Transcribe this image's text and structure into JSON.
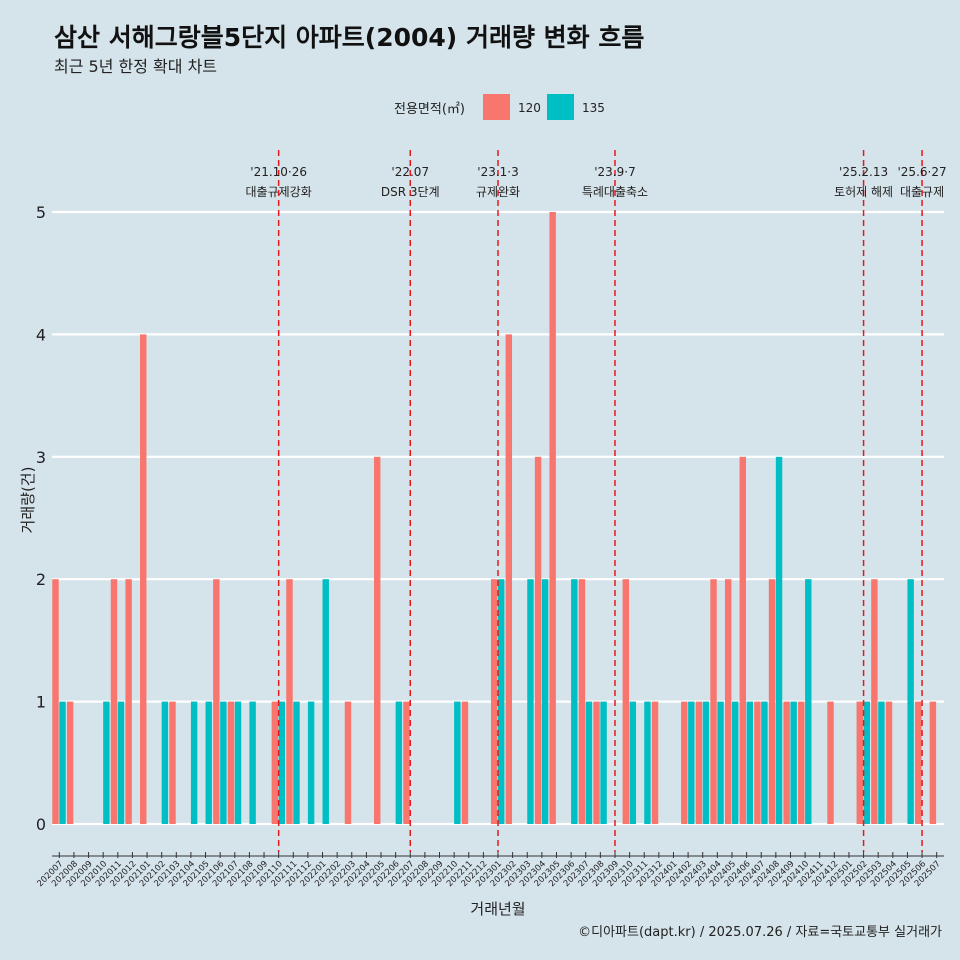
{
  "title": "삼산 서해그랑블5단지 아파트(2004) 거래량 변화 흐름",
  "subtitle": "최근 5년 한정 확대 차트",
  "caption": "©디아파트(dapt.kr) / 2025.07.26 / 자료=국토교통부 실거래가",
  "chart_data": {
    "type": "bar",
    "xlabel": "거래년월",
    "ylabel": "거래량(건)",
    "ylim": [
      0,
      5
    ],
    "yticks": [
      0,
      1,
      2,
      3,
      4,
      5
    ],
    "grid": true,
    "legend": {
      "title": "전용면적(㎡)",
      "position": "top"
    },
    "categories": [
      "202007",
      "202008",
      "202009",
      "202010",
      "202011",
      "202012",
      "202101",
      "202102",
      "202103",
      "202104",
      "202105",
      "202106",
      "202107",
      "202108",
      "202109",
      "202110",
      "202111",
      "202112",
      "202201",
      "202202",
      "202203",
      "202204",
      "202205",
      "202206",
      "202207",
      "202208",
      "202209",
      "202210",
      "202211",
      "202212",
      "202301",
      "202302",
      "202303",
      "202304",
      "202305",
      "202306",
      "202307",
      "202308",
      "202309",
      "202310",
      "202311",
      "202312",
      "202401",
      "202402",
      "202403",
      "202404",
      "202405",
      "202406",
      "202407",
      "202408",
      "202409",
      "202410",
      "202411",
      "202412",
      "202501",
      "202502",
      "202503",
      "202504",
      "202505",
      "202506",
      "202507"
    ],
    "series": [
      {
        "name": "120",
        "color": "#F8766D",
        "values": [
          2,
          1,
          0,
          0,
          2,
          2,
          4,
          0,
          1,
          0,
          0,
          2,
          1,
          0,
          0,
          1,
          2,
          0,
          0,
          0,
          1,
          0,
          3,
          0,
          1,
          0,
          0,
          0,
          1,
          0,
          2,
          4,
          0,
          3,
          5,
          0,
          2,
          1,
          0,
          2,
          0,
          1,
          0,
          1,
          1,
          2,
          2,
          3,
          1,
          2,
          1,
          1,
          0,
          1,
          0,
          1,
          2,
          1,
          0,
          1,
          1
        ]
      },
      {
        "name": "135",
        "color": "#00BFC4",
        "values": [
          1,
          0,
          0,
          1,
          1,
          0,
          0,
          1,
          0,
          1,
          1,
          1,
          1,
          1,
          0,
          1,
          1,
          1,
          2,
          0,
          0,
          0,
          0,
          1,
          0,
          0,
          0,
          1,
          0,
          0,
          2,
          0,
          2,
          2,
          0,
          2,
          1,
          1,
          0,
          1,
          1,
          0,
          0,
          1,
          1,
          1,
          1,
          1,
          1,
          3,
          1,
          2,
          0,
          0,
          0,
          1,
          1,
          0,
          2,
          0,
          0
        ]
      }
    ],
    "events": [
      {
        "x": "202110",
        "date": "'21.10·26",
        "label": "대출규제강화"
      },
      {
        "x": "202207",
        "date": "'22.07",
        "label": "DSR 3단계"
      },
      {
        "x": "202301",
        "date": "'23.1·3",
        "label": "규제완화"
      },
      {
        "x": "202309",
        "date": "'23.9·7",
        "label": "특례대출축소"
      },
      {
        "x": "202502",
        "date": "'25.2.13",
        "label": "토허제 해제"
      },
      {
        "x": "202506",
        "date": "'25.6·27",
        "label": "대출규제"
      }
    ]
  }
}
